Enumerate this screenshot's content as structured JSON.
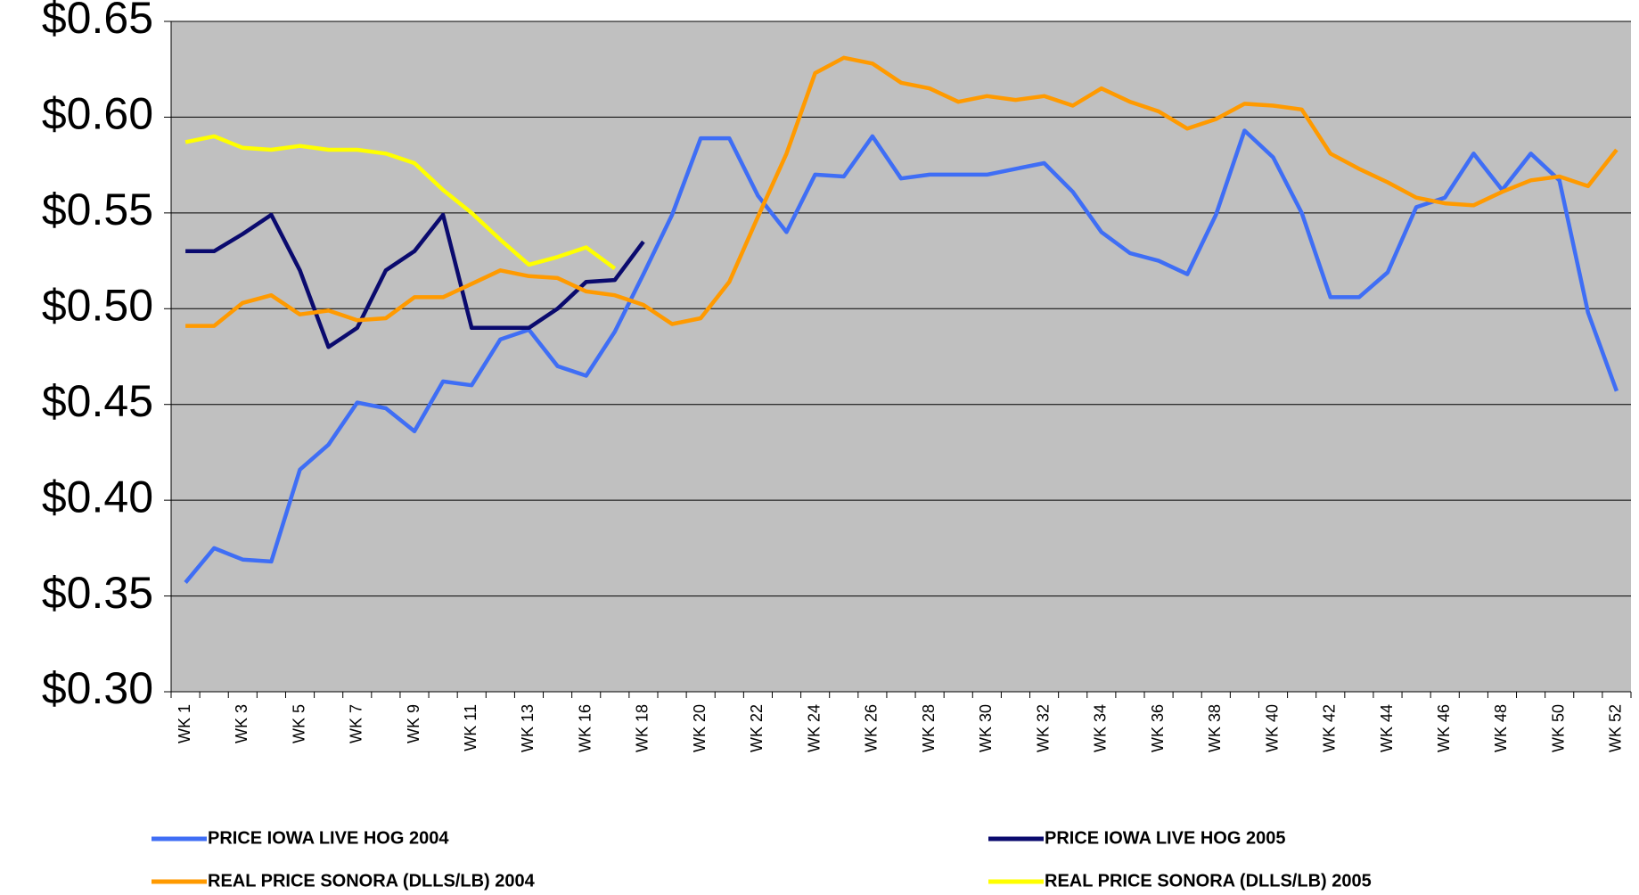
{
  "chart_data": {
    "type": "line",
    "categories": [
      "WK 1",
      null,
      "WK 3",
      null,
      "WK 5",
      null,
      "WK 7",
      null,
      "WK 9",
      null,
      "WK 11",
      null,
      "WK 13",
      null,
      "WK 16",
      null,
      "WK 18",
      null,
      "WK 20",
      null,
      "WK 22",
      null,
      "WK 24",
      null,
      "WK 26",
      null,
      "WK 28",
      null,
      "WK 30",
      null,
      "WK 32",
      null,
      "WK 34",
      null,
      "WK 36",
      null,
      "WK 38",
      null,
      "WK 40",
      null,
      "WK 42",
      null,
      "WK 44",
      null,
      "WK 46",
      null,
      "WK 48",
      null,
      "WK 50",
      null,
      "WK 52"
    ],
    "series": [
      {
        "name": "PRICE IOWA LIVE HOG 2004",
        "color": "#3f6ef5",
        "values": [
          0.357,
          0.375,
          0.369,
          0.368,
          0.416,
          0.429,
          0.451,
          0.448,
          0.436,
          0.462,
          0.46,
          0.484,
          0.489,
          0.47,
          0.465,
          0.488,
          0.518,
          0.549,
          0.589,
          0.589,
          0.559,
          0.54,
          0.57,
          0.569,
          0.59,
          0.568,
          0.57,
          0.57,
          0.57,
          0.573,
          0.576,
          0.561,
          0.54,
          0.529,
          0.525,
          0.518,
          0.549,
          0.593,
          0.579,
          0.55,
          0.506,
          0.506,
          0.519,
          0.553,
          0.558,
          0.581,
          0.562,
          0.581,
          0.567,
          0.498,
          0.457
        ]
      },
      {
        "name": "PRICE IOWA LIVE HOG 2005",
        "color": "#0a0a6e",
        "values": [
          0.53,
          0.53,
          0.539,
          0.549,
          0.52,
          0.48,
          0.49,
          0.52,
          0.53,
          0.549,
          0.49,
          0.49,
          0.49,
          0.5,
          0.514,
          0.515,
          0.535,
          null,
          null,
          null,
          null,
          null,
          null,
          null,
          null,
          null,
          null,
          null,
          null,
          null,
          null,
          null,
          null,
          null,
          null,
          null,
          null,
          null,
          null,
          null,
          null,
          null,
          null,
          null,
          null,
          null,
          null,
          null,
          null,
          null,
          null
        ]
      },
      {
        "name": "REAL PRICE SONORA (DLLS/LB) 2004",
        "color": "#ff9a00",
        "values": [
          0.491,
          0.491,
          0.503,
          0.507,
          0.497,
          0.499,
          0.494,
          0.495,
          0.506,
          0.506,
          0.513,
          0.52,
          0.517,
          0.516,
          0.509,
          0.507,
          0.502,
          0.492,
          0.495,
          0.514,
          0.548,
          0.581,
          0.623,
          0.631,
          0.628,
          0.618,
          0.615,
          0.608,
          0.611,
          0.609,
          0.611,
          0.606,
          0.615,
          0.608,
          0.603,
          0.594,
          0.599,
          0.607,
          0.606,
          0.604,
          0.581,
          0.573,
          0.566,
          0.558,
          0.555,
          0.554,
          0.561,
          0.567,
          0.569,
          0.564,
          0.583
        ]
      },
      {
        "name": "REAL PRICE SONORA (DLLS/LB) 2005",
        "color": "#ffff00",
        "values": [
          0.587,
          0.59,
          0.584,
          0.583,
          0.585,
          0.583,
          0.583,
          0.581,
          0.576,
          0.562,
          0.55,
          0.536,
          0.523,
          0.527,
          0.532,
          0.521,
          null,
          null,
          null,
          null,
          null,
          null,
          null,
          null,
          null,
          null,
          null,
          null,
          null,
          null,
          null,
          null,
          null,
          null,
          null,
          null,
          null,
          null,
          null,
          null,
          null,
          null,
          null,
          null,
          null,
          null,
          null,
          null,
          null,
          null,
          null
        ]
      }
    ],
    "ylim": [
      0.3,
      0.65
    ],
    "yticks": [
      {
        "value": 0.3,
        "label": "$0.30"
      },
      {
        "value": 0.35,
        "label": "$0.35"
      },
      {
        "value": 0.4,
        "label": "$0.40"
      },
      {
        "value": 0.45,
        "label": "$0.45"
      },
      {
        "value": 0.5,
        "label": "$0.50"
      },
      {
        "value": 0.55,
        "label": "$0.55"
      },
      {
        "value": 0.6,
        "label": "$0.60"
      },
      {
        "value": 0.65,
        "label": "$0.65"
      }
    ],
    "grid": true,
    "plot_background": "#c0c0c0",
    "legend": "bottom"
  }
}
